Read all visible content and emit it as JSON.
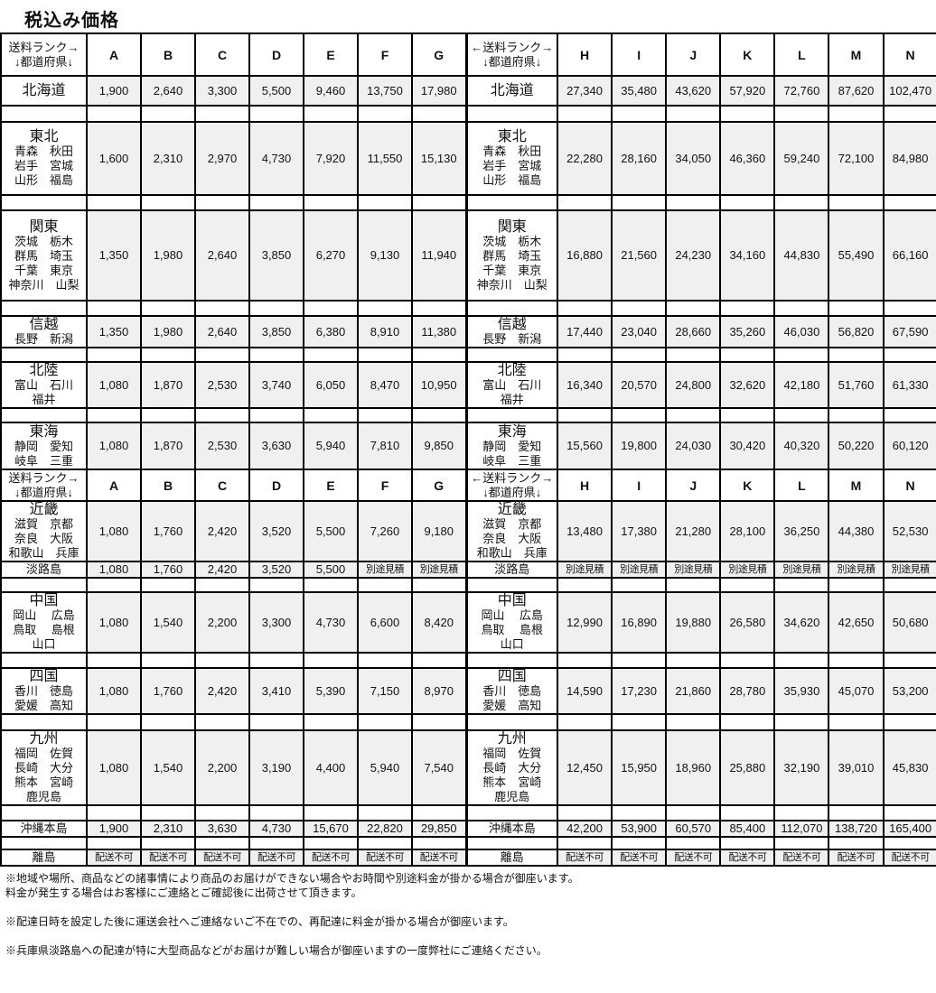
{
  "title": "税込み価格",
  "header": {
    "left_label": [
      "送料ランク→",
      "↓都道府県↓"
    ],
    "right_label": [
      "←送料ランク→",
      "↓都道府県↓"
    ],
    "ranks_left": [
      "A",
      "B",
      "C",
      "D",
      "E",
      "F",
      "G"
    ],
    "ranks_right": [
      "H",
      "I",
      "J",
      "K",
      "L",
      "M",
      "N"
    ]
  },
  "rows": [
    {
      "type": "header"
    },
    {
      "type": "data",
      "region": "北海道",
      "prefectures": [],
      "left": [
        "1,900",
        "2,640",
        "3,300",
        "5,500",
        "9,460",
        "13,750",
        "17,980"
      ],
      "right": [
        "27,340",
        "35,480",
        "43,620",
        "57,920",
        "72,760",
        "87,620",
        "102,470"
      ]
    },
    {
      "type": "blank"
    },
    {
      "type": "data",
      "region": "東北",
      "prefectures": [
        "青森　秋田",
        "岩手　宮城",
        "山形　福島"
      ],
      "left": [
        "1,600",
        "2,310",
        "2,970",
        "4,730",
        "7,920",
        "11,550",
        "15,130"
      ],
      "right": [
        "22,280",
        "28,160",
        "34,050",
        "46,360",
        "59,240",
        "72,100",
        "84,980"
      ]
    },
    {
      "type": "blank"
    },
    {
      "type": "data",
      "region": "関東",
      "prefectures": [
        "茨城　栃木",
        "群馬　埼玉",
        "千葉　東京",
        "神奈川　山梨"
      ],
      "left": [
        "1,350",
        "1,980",
        "2,640",
        "3,850",
        "6,270",
        "9,130",
        "11,940"
      ],
      "right": [
        "16,880",
        "21,560",
        "24,230",
        "34,160",
        "44,830",
        "55,490",
        "66,160"
      ]
    },
    {
      "type": "blank"
    },
    {
      "type": "data",
      "region": "信越",
      "prefectures": [
        "長野　新潟"
      ],
      "left": [
        "1,350",
        "1,980",
        "2,640",
        "3,850",
        "6,380",
        "8,910",
        "11,380"
      ],
      "right": [
        "17,440",
        "23,040",
        "28,660",
        "35,260",
        "46,030",
        "56,820",
        "67,590"
      ]
    },
    {
      "type": "blank"
    },
    {
      "type": "data",
      "region": "北陸",
      "prefectures": [
        "富山　石川",
        "福井"
      ],
      "left": [
        "1,080",
        "1,870",
        "2,530",
        "3,740",
        "6,050",
        "8,470",
        "10,950"
      ],
      "right": [
        "16,340",
        "20,570",
        "24,800",
        "32,620",
        "42,180",
        "51,760",
        "61,330"
      ]
    },
    {
      "type": "blank"
    },
    {
      "type": "data",
      "region": "東海",
      "prefectures": [
        "静岡　愛知",
        "岐阜　三重"
      ],
      "left": [
        "1,080",
        "1,870",
        "2,530",
        "3,630",
        "5,940",
        "7,810",
        "9,850"
      ],
      "right": [
        "15,560",
        "19,800",
        "24,030",
        "30,420",
        "40,320",
        "50,220",
        "60,120"
      ]
    },
    {
      "type": "header"
    },
    {
      "type": "data",
      "region": "近畿",
      "prefectures": [
        "滋賀　京都",
        "奈良　大阪",
        "和歌山　兵庫"
      ],
      "left": [
        "1,080",
        "1,760",
        "2,420",
        "3,520",
        "5,500",
        "7,260",
        "9,180"
      ],
      "right": [
        "13,480",
        "17,380",
        "21,280",
        "28,100",
        "36,250",
        "44,380",
        "52,530"
      ]
    },
    {
      "type": "data",
      "region": "淡路島",
      "prefectures": [],
      "plain": true,
      "left": [
        "1,080",
        "1,760",
        "2,420",
        "3,520",
        "5,500",
        "別途見積",
        "別途見積"
      ],
      "right": [
        "別途見積",
        "別途見積",
        "別途見積",
        "別途見積",
        "別途見積",
        "別途見積",
        "別途見積"
      ]
    },
    {
      "type": "blank"
    },
    {
      "type": "data",
      "region": "中国",
      "prefectures": [
        "岡山　 広島",
        "鳥取　 島根",
        "山口"
      ],
      "left": [
        "1,080",
        "1,540",
        "2,200",
        "3,300",
        "4,730",
        "6,600",
        "8,420"
      ],
      "right": [
        "12,990",
        "16,890",
        "19,880",
        "26,580",
        "34,620",
        "42,650",
        "50,680"
      ]
    },
    {
      "type": "blank"
    },
    {
      "type": "data",
      "region": "四国",
      "prefectures": [
        "香川　徳島",
        "愛媛　高知"
      ],
      "left": [
        "1,080",
        "1,760",
        "2,420",
        "3,410",
        "5,390",
        "7,150",
        "8,970"
      ],
      "right": [
        "14,590",
        "17,230",
        "21,860",
        "28,780",
        "35,930",
        "45,070",
        "53,200"
      ]
    },
    {
      "type": "blank"
    },
    {
      "type": "data",
      "region": "九州",
      "prefectures": [
        "福岡　佐賀",
        "長崎　大分",
        "熊本　宮崎",
        "鹿児島"
      ],
      "left": [
        "1,080",
        "1,540",
        "2,200",
        "3,190",
        "4,400",
        "5,940",
        "7,540"
      ],
      "right": [
        "12,450",
        "15,950",
        "18,960",
        "25,880",
        "32,190",
        "39,010",
        "45,830"
      ]
    },
    {
      "type": "blank"
    },
    {
      "type": "data",
      "region": "沖縄本島",
      "prefectures": [],
      "plain": true,
      "left": [
        "1,900",
        "2,310",
        "3,630",
        "4,730",
        "15,670",
        "22,820",
        "29,850"
      ],
      "right": [
        "42,200",
        "53,900",
        "60,570",
        "85,400",
        "112,070",
        "138,720",
        "165,400"
      ]
    },
    {
      "type": "blank"
    },
    {
      "type": "data",
      "region": "離島",
      "prefectures": [],
      "plain": true,
      "left": [
        "配送不可",
        "配送不可",
        "配送不可",
        "配送不可",
        "配送不可",
        "配送不可",
        "配送不可"
      ],
      "right": [
        "配送不可",
        "配送不可",
        "配送不可",
        "配送不可",
        "配送不可",
        "配送不可",
        "配送不可"
      ]
    }
  ],
  "notes": [
    [
      "※地域や場所、商品などの諸事情により商品のお届けができない場合やお時間や別途料金が掛かる場合が御座います。",
      "料金が発生する場合はお客様にご連絡とご確認後に出荷させて頂きます。"
    ],
    [
      "※配達日時を設定した後に運送会社へご連絡ないご不在での、再配達に料金が掛かる場合が御座います。"
    ],
    [
      "※兵庫県淡路島への配達が特に大型商品などがお届けが難しい場合が御座いますの一度弊社にご連絡ください。"
    ]
  ]
}
